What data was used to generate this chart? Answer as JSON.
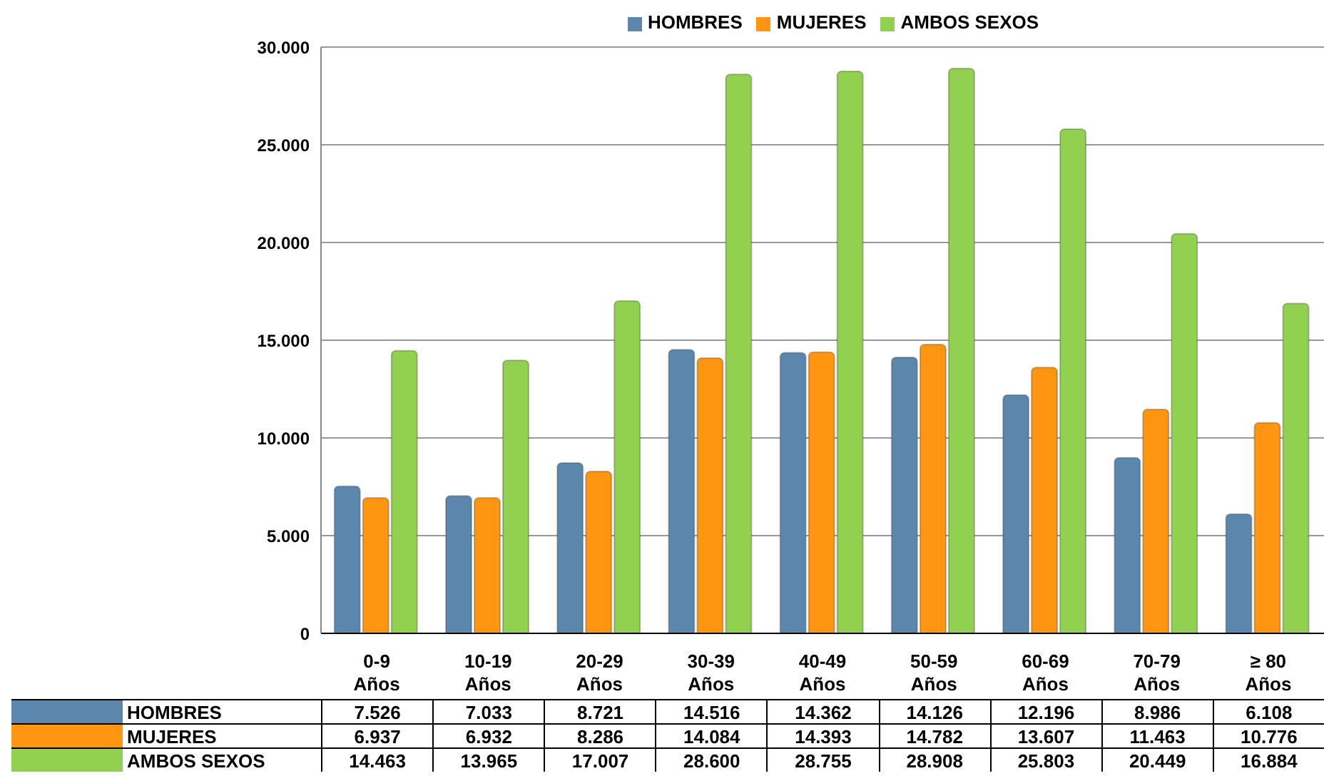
{
  "chart_data": {
    "type": "bar",
    "categories": [
      "0-9 Años",
      "10-19 Años",
      "20-29 Años",
      "30-39 Años",
      "40-49 Años",
      "50-59 Años",
      "60-69 Años",
      "70-79 Años",
      "≥ 80 Años"
    ],
    "series": [
      {
        "name": "HOMBRES",
        "color": "#5b87ad",
        "values": [
          7526,
          7033,
          8721,
          14516,
          14362,
          14126,
          12196,
          8986,
          6108
        ],
        "value_labels": [
          "7.526",
          "7.033",
          "8.721",
          "14.516",
          "14.362",
          "14.126",
          "12.196",
          "8.986",
          "6.108"
        ]
      },
      {
        "name": "MUJERES",
        "color": "#ff9511",
        "values": [
          6937,
          6932,
          8286,
          14084,
          14393,
          14782,
          13607,
          11463,
          10776
        ],
        "value_labels": [
          "6.937",
          "6.932",
          "8.286",
          "14.084",
          "14.393",
          "14.782",
          "13.607",
          "11.463",
          "10.776"
        ]
      },
      {
        "name": "AMBOS SEXOS",
        "color": "#92d050",
        "values": [
          14463,
          13965,
          17007,
          28600,
          28755,
          28908,
          25803,
          20449,
          16884
        ],
        "value_labels": [
          "14.463",
          "13.965",
          "17.007",
          "28.600",
          "28.755",
          "28.908",
          "25.803",
          "20.449",
          "16.884"
        ]
      }
    ],
    "ylim": [
      0,
      30000
    ],
    "yticks": [
      {
        "value": 0,
        "label": "0"
      },
      {
        "value": 5000,
        "label": "5.000"
      },
      {
        "value": 10000,
        "label": "10.000"
      },
      {
        "value": 15000,
        "label": "15.000"
      },
      {
        "value": 20000,
        "label": "20.000"
      },
      {
        "value": 25000,
        "label": "25.000"
      },
      {
        "value": 30000,
        "label": "30.000"
      }
    ],
    "grid": "y",
    "legend": "top"
  }
}
